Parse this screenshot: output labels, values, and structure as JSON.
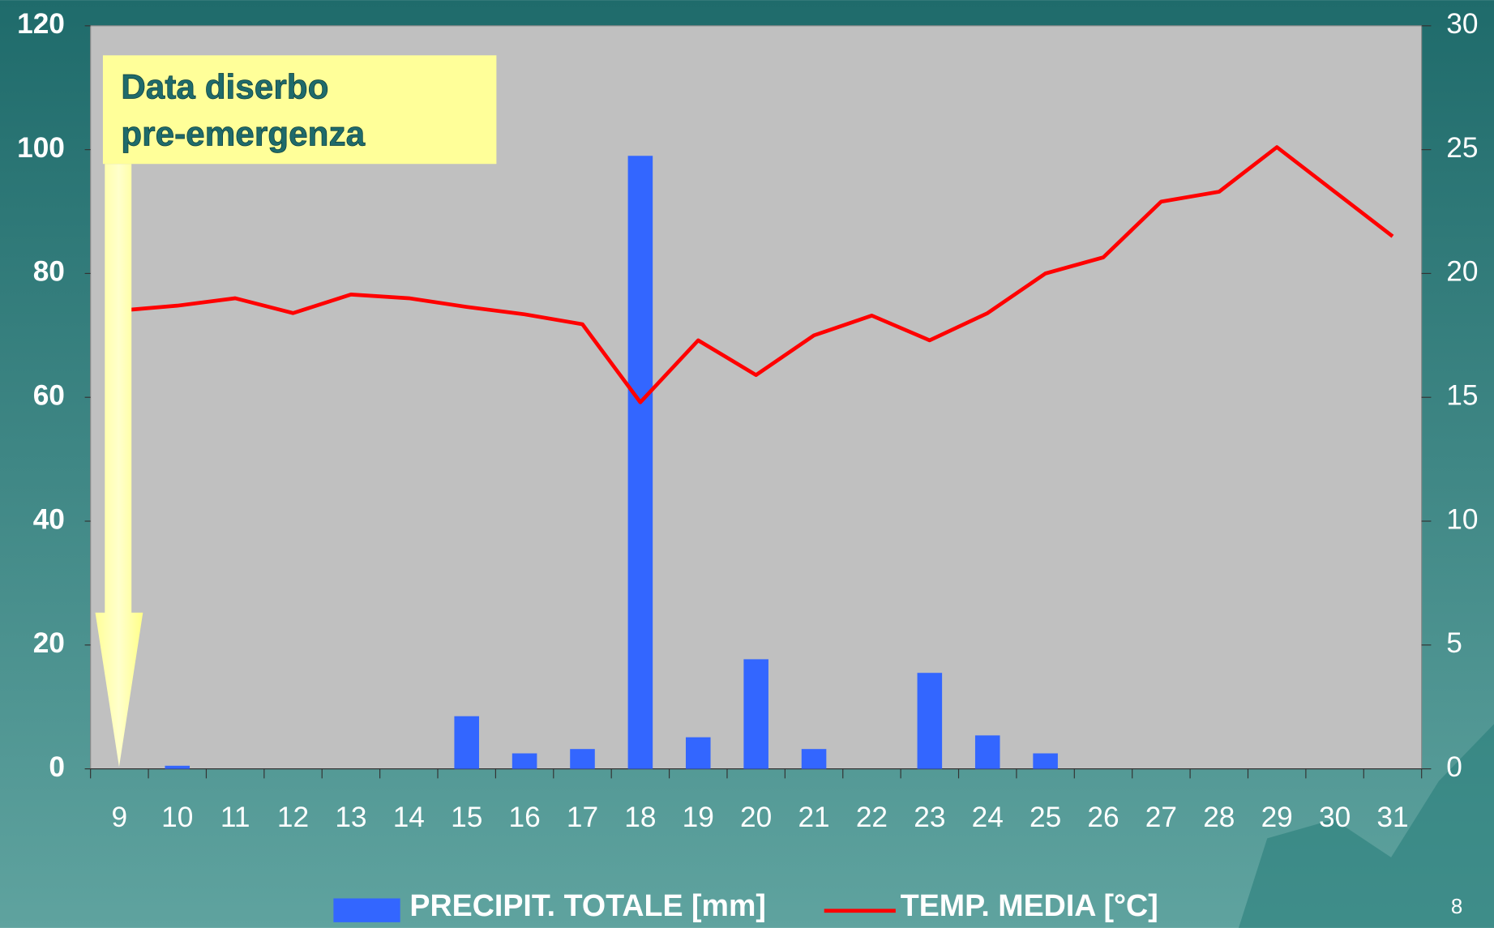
{
  "chart_data": {
    "type": "bar-line",
    "categories": [
      "9",
      "10",
      "11",
      "12",
      "13",
      "14",
      "15",
      "16",
      "17",
      "18",
      "19",
      "20",
      "21",
      "22",
      "23",
      "24",
      "25",
      "26",
      "27",
      "28",
      "29",
      "30",
      "31"
    ],
    "series": [
      {
        "name": "PRECIPIT. TOTALE  [mm]",
        "type": "bar",
        "color": "#3366ff",
        "axis": "y",
        "values": [
          0,
          0.5,
          0,
          0,
          0,
          0,
          8.5,
          2.5,
          3.2,
          99,
          5.1,
          17.7,
          3.2,
          0,
          15.5,
          5.4,
          2.5,
          0,
          0,
          0,
          0,
          0,
          0
        ]
      },
      {
        "name": "TEMP. MEDIA [°C]",
        "type": "line",
        "color": "#ff0000",
        "axis": "y2",
        "values": [
          18.5,
          18.7,
          19.0,
          18.4,
          19.15,
          19.0,
          18.65,
          18.35,
          17.95,
          14.8,
          17.3,
          15.9,
          17.5,
          18.3,
          17.3,
          18.4,
          20.0,
          20.65,
          22.9,
          23.3,
          25.1,
          23.3,
          21.5
        ]
      }
    ],
    "ylim": [
      0,
      120
    ],
    "yticks": [
      0,
      20,
      40,
      60,
      80,
      100,
      120
    ],
    "y2lim": [
      0,
      30
    ],
    "y2ticks": [
      0,
      5,
      10,
      15,
      20,
      25,
      30
    ],
    "annotation": [
      "Data diserbo",
      "pre-emergenza"
    ]
  },
  "slide_number": "8"
}
